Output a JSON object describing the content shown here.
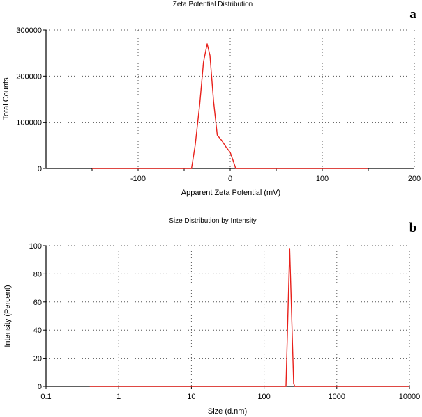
{
  "chart_data": [
    {
      "type": "line",
      "panel_label": "a",
      "title": "Zeta Potential Distribution",
      "xlabel": "Apparent Zeta Potential (mV)",
      "ylabel": "Total Counts",
      "xlim": [
        -200,
        200
      ],
      "ylim": [
        0,
        300000
      ],
      "x_scale": "linear",
      "xticks": [
        -100,
        0,
        100,
        200
      ],
      "xtick_labels": [
        "-100",
        "0",
        "100",
        "200"
      ],
      "xtick_marks": [
        -150,
        -100,
        -50,
        0,
        50,
        100,
        150
      ],
      "yticks": [
        0,
        100000,
        200000,
        300000
      ],
      "ytick_labels": [
        "0",
        "100000",
        "200000",
        "300000"
      ],
      "grid": true,
      "line_color": "#e8201a",
      "series": [
        {
          "x": [
            -150,
            -100,
            -50,
            -42,
            -38,
            -33,
            -29,
            -25,
            -22,
            -18,
            -14,
            -9,
            -4,
            0,
            3,
            6,
            50,
            100,
            150
          ],
          "y": [
            0,
            0,
            0,
            0,
            50000,
            140000,
            230000,
            270000,
            245000,
            145000,
            72000,
            60000,
            45000,
            35000,
            18000,
            0,
            0,
            0,
            0
          ]
        }
      ]
    },
    {
      "type": "line",
      "panel_label": "b",
      "title": "Size Distribution by Intensity",
      "xlabel": "Size (d.nm)",
      "ylabel": "Intensity (Percent)",
      "xlim": [
        0.1,
        10000
      ],
      "ylim": [
        0,
        100
      ],
      "x_scale": "log",
      "xticks": [
        0.1,
        1,
        10,
        100,
        1000,
        10000
      ],
      "xtick_labels": [
        "0.1",
        "1",
        "10",
        "100",
        "1000",
        "10000"
      ],
      "yticks": [
        0,
        20,
        40,
        60,
        80,
        100
      ],
      "ytick_labels": [
        "0",
        "20",
        "40",
        "60",
        "80",
        "100"
      ],
      "grid": true,
      "line_color": "#e8201a",
      "series": [
        {
          "x": [
            0.4,
            1,
            10,
            100,
            195,
            200,
            225,
            255,
            265,
            300,
            1000,
            10000
          ],
          "y": [
            0,
            0,
            0,
            0,
            0,
            0,
            98,
            2,
            0,
            0,
            0,
            0
          ]
        }
      ]
    }
  ]
}
